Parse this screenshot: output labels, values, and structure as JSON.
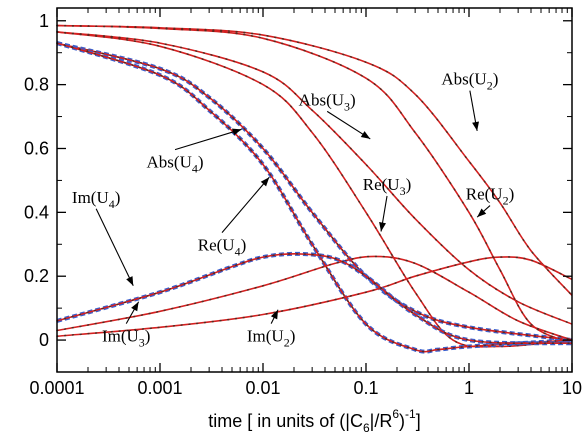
{
  "chart_data": {
    "type": "line",
    "title": "",
    "xlabel": "time [ in units of (|C",
    "xlabel_sub": "6",
    "xlabel_mid": "|/R",
    "xlabel_sup": "6",
    "xlabel_end": ")",
    "xlabel_sup2": "-1",
    "xlabel_close": "]",
    "ylabel": "",
    "xscale": "log",
    "xlim": [
      0.0001,
      10
    ],
    "ylim": [
      -0.1,
      1.04
    ],
    "x_ticks": [
      0.0001,
      0.001,
      0.01,
      0.1,
      1,
      10
    ],
    "x_tick_labels": [
      "0.0001",
      "0.001",
      "0.01",
      "0.1",
      "1",
      "10"
    ],
    "y_ticks": [
      0,
      0.2,
      0.4,
      0.6,
      0.8,
      1
    ],
    "y_tick_labels": [
      "0",
      "0.2",
      "0.4",
      "0.6",
      "0.8",
      "1"
    ],
    "grid": false,
    "legend": "none",
    "colors": {
      "curve": "#d42020",
      "dots": "#3c2a1e",
      "dashed": "#3a5fcd"
    },
    "series": [
      {
        "label": "Abs",
        "sub": "2",
        "x": [
          0.0001,
          0.001,
          0.01,
          0.1,
          0.3,
          1,
          2,
          4,
          10
        ],
        "y": [
          0.985,
          0.978,
          0.955,
          0.87,
          0.77,
          0.56,
          0.43,
          0.28,
          0.14
        ]
      },
      {
        "label": "Abs",
        "sub": "3",
        "x": [
          0.0001,
          0.001,
          0.01,
          0.03,
          0.1,
          0.3,
          1,
          3,
          10
        ],
        "y": [
          0.965,
          0.93,
          0.84,
          0.72,
          0.55,
          0.38,
          0.22,
          0.12,
          0.05
        ]
      },
      {
        "label": "Abs",
        "sub": "4",
        "x": [
          0.0001,
          0.001,
          0.003,
          0.01,
          0.03,
          0.1,
          0.3,
          1,
          10
        ],
        "y": [
          0.93,
          0.85,
          0.76,
          0.6,
          0.4,
          0.2,
          0.09,
          0.04,
          0.0
        ]
      },
      {
        "label": "Re",
        "sub": "2",
        "x": [
          0.0001,
          0.001,
          0.01,
          0.1,
          0.3,
          1,
          2,
          4,
          10
        ],
        "y": [
          0.985,
          0.976,
          0.945,
          0.82,
          0.65,
          0.4,
          0.22,
          0.05,
          -0.01
        ]
      },
      {
        "label": "Re",
        "sub": "3",
        "x": [
          0.0001,
          0.001,
          0.01,
          0.03,
          0.1,
          0.3,
          0.7,
          2,
          10
        ],
        "y": [
          0.965,
          0.92,
          0.8,
          0.65,
          0.4,
          0.15,
          0.0,
          -0.02,
          0.0
        ]
      },
      {
        "label": "Re",
        "sub": "4",
        "x": [
          0.0001,
          0.001,
          0.003,
          0.01,
          0.03,
          0.1,
          0.3,
          0.5,
          1,
          10
        ],
        "y": [
          0.93,
          0.83,
          0.72,
          0.55,
          0.3,
          0.05,
          -0.03,
          -0.03,
          -0.02,
          0.0
        ]
      },
      {
        "label": "Im",
        "sub": "2",
        "x": [
          0.0001,
          0.001,
          0.01,
          0.1,
          0.3,
          1,
          2,
          4,
          10
        ],
        "y": [
          0.012,
          0.04,
          0.08,
          0.15,
          0.2,
          0.245,
          0.26,
          0.25,
          0.19
        ]
      },
      {
        "label": "Im",
        "sub": "3",
        "x": [
          0.0001,
          0.001,
          0.01,
          0.05,
          0.12,
          0.3,
          1,
          3,
          10
        ],
        "y": [
          0.03,
          0.09,
          0.17,
          0.24,
          0.262,
          0.24,
          0.15,
          0.06,
          0.0
        ]
      },
      {
        "label": "Im",
        "sub": "4",
        "x": [
          0.0001,
          0.001,
          0.005,
          0.01,
          0.022,
          0.05,
          0.1,
          0.3,
          1,
          10
        ],
        "y": [
          0.06,
          0.15,
          0.23,
          0.26,
          0.27,
          0.255,
          0.2,
          0.08,
          0.0,
          -0.01
        ]
      }
    ],
    "annotations": [
      {
        "label": "Abs",
        "sub": "2",
        "tx": 1.02,
        "ty": 0.8,
        "ax": 1.2,
        "ay": 0.655
      },
      {
        "label": "Abs",
        "sub": "3",
        "tx": 0.042,
        "ty": 0.735,
        "ax": 0.11,
        "ay": 0.63
      },
      {
        "label": "Abs",
        "sub": "4",
        "tx": 0.0014,
        "ty": 0.54,
        "ax": 0.0062,
        "ay": 0.66
      },
      {
        "label": "Re",
        "sub": "2",
        "tx": 1.6,
        "ty": 0.44,
        "ax": 1.2,
        "ay": 0.385
      },
      {
        "label": "Re",
        "sub": "3",
        "tx": 0.16,
        "ty": 0.47,
        "ax": 0.14,
        "ay": 0.34
      },
      {
        "label": "Re",
        "sub": "4",
        "tx": 0.004,
        "ty": 0.28,
        "ax": 0.0115,
        "ay": 0.51
      },
      {
        "label": "Im",
        "sub": "4",
        "tx": 0.00024,
        "ty": 0.43,
        "ax": 0.00055,
        "ay": 0.17
      },
      {
        "label": "Im",
        "sub": "3",
        "tx": 0.00047,
        "ty": -0.005,
        "ax": 0.00062,
        "ay": 0.12
      },
      {
        "label": "Im",
        "sub": "2",
        "tx": 0.012,
        "ty": -0.005,
        "ax": 0.014,
        "ay": 0.095
      }
    ]
  }
}
